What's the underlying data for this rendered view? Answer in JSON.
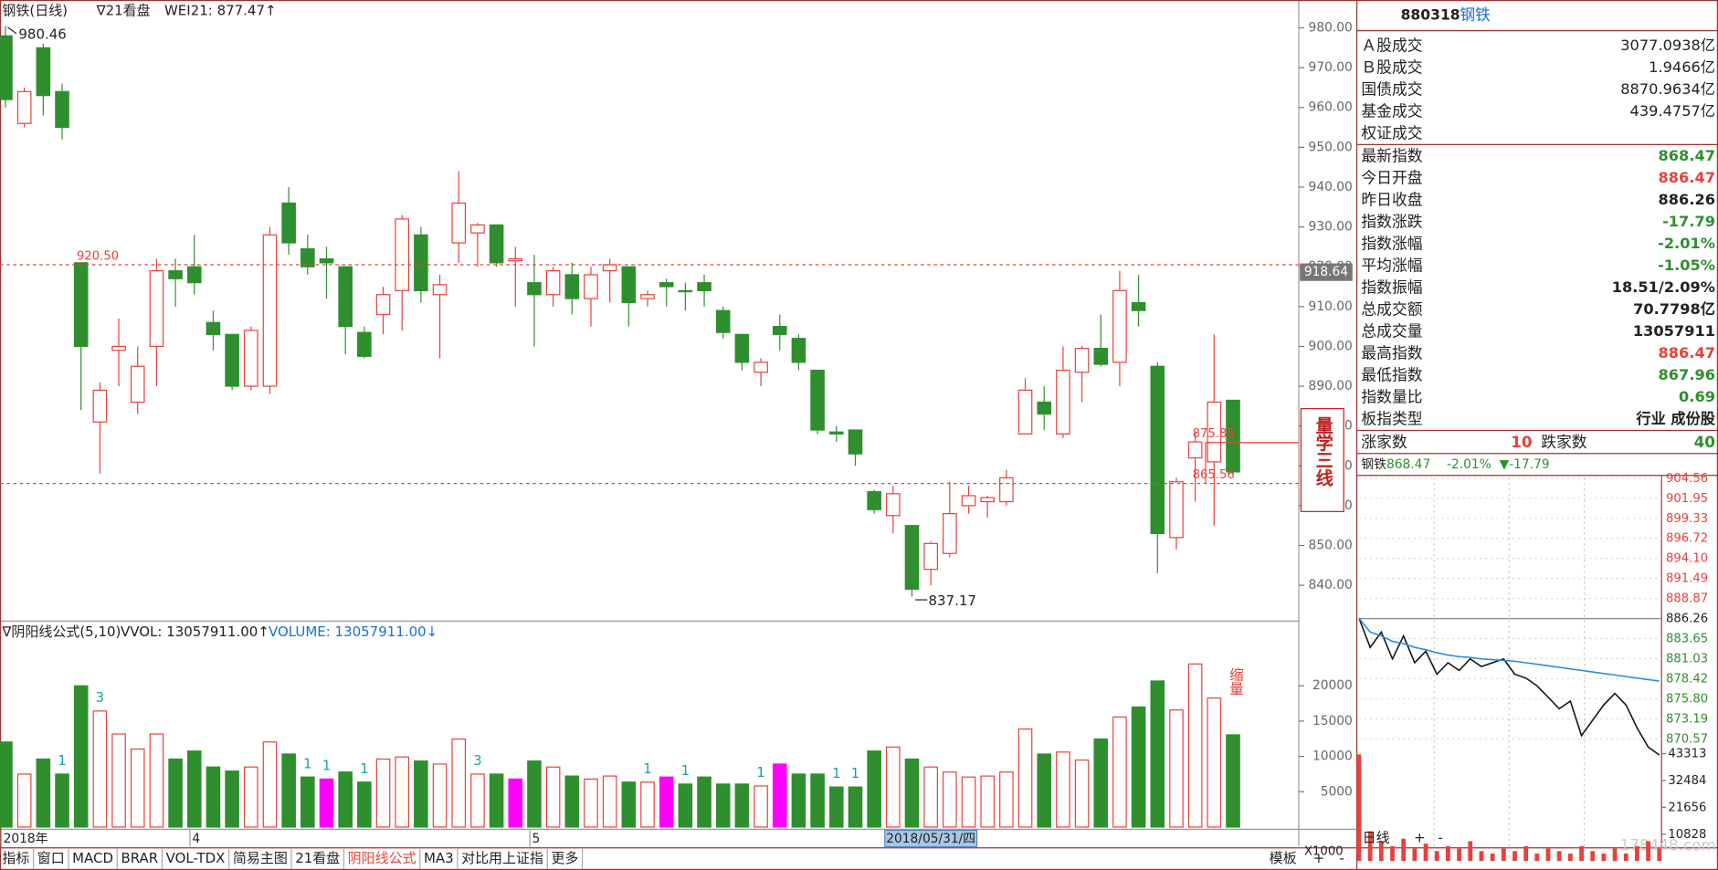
{
  "chart_data": [
    {
      "type": "candlestick",
      "title": "钢铁(日线)",
      "subtitle": "∇21看盘",
      "indicator": "WEI21: 877.47↑",
      "categories": [
        "2018年",
        null,
        null,
        null,
        null,
        null,
        null,
        null,
        null,
        null,
        "4",
        null,
        null,
        null,
        null,
        null,
        null,
        null,
        null,
        null,
        null,
        null,
        null,
        null,
        null,
        null,
        null,
        null,
        "5",
        null,
        null,
        null,
        null,
        null,
        null,
        null,
        null,
        null,
        null,
        null,
        null,
        null,
        null,
        null,
        null,
        null,
        null,
        null,
        null,
        "2018/05/31/四",
        null,
        null,
        null,
        null,
        null,
        null,
        null,
        null,
        null,
        null,
        null,
        null,
        null,
        null,
        null,
        null
      ],
      "open": [
        978,
        956,
        975,
        964,
        921,
        881,
        899,
        886,
        900,
        919,
        920,
        906,
        903,
        890,
        890,
        936,
        924.5,
        922,
        920,
        903.5,
        908,
        914,
        928,
        913,
        926,
        928.5,
        930.5,
        921.5,
        916,
        913,
        918,
        912,
        919,
        920,
        912,
        916,
        914,
        916,
        909,
        903,
        893.5,
        905,
        902,
        894,
        878.5,
        879,
        863.5,
        857.5,
        855,
        844,
        848,
        860,
        861,
        861,
        878,
        886,
        878,
        893.5,
        899.5,
        896,
        911,
        895,
        852,
        872,
        871,
        886.47
      ],
      "high": [
        980.46,
        965,
        976,
        966,
        921,
        891,
        907,
        900,
        922,
        922,
        928,
        909,
        903,
        905,
        930,
        940,
        928,
        925,
        920,
        905,
        915,
        933,
        930,
        918,
        944,
        931,
        930.5,
        925,
        923,
        920,
        921,
        920,
        922,
        920,
        914,
        917,
        916,
        918,
        910,
        903,
        897,
        908,
        903,
        894,
        880,
        879,
        864,
        865,
        855,
        851,
        866,
        865,
        862.5,
        869,
        892,
        890,
        900,
        900,
        908,
        919,
        918,
        896,
        867,
        878.5,
        903,
        886.47
      ],
      "low": [
        960,
        955,
        958,
        952,
        884,
        868,
        890,
        883,
        890,
        910,
        913,
        899,
        889,
        889,
        888,
        923,
        918,
        912,
        898,
        897,
        903,
        904,
        911,
        897,
        921,
        920,
        920,
        910,
        900,
        910,
        908,
        905,
        911,
        905,
        910,
        910,
        909,
        910,
        902,
        894,
        890,
        899,
        894,
        878,
        876,
        870,
        858,
        853,
        837.17,
        840,
        847,
        858,
        857,
        860,
        878,
        879,
        877,
        886,
        895,
        890,
        905,
        843,
        849,
        861,
        855,
        867.96
      ],
      "close": [
        962,
        964,
        963,
        955,
        900,
        889,
        900,
        895,
        919,
        917,
        916,
        903,
        890,
        904,
        928,
        926,
        920,
        921,
        905,
        897.5,
        913,
        932,
        914,
        915.5,
        936,
        930.5,
        921,
        922,
        913,
        919,
        912,
        918,
        920.5,
        911,
        913,
        915,
        914,
        914,
        903.5,
        896,
        896,
        903,
        896,
        879,
        878,
        873,
        859,
        863,
        839,
        850.5,
        858,
        862.5,
        862,
        867,
        889,
        883,
        894,
        899.5,
        895.5,
        914,
        909,
        853,
        866,
        876,
        886,
        868.47
      ],
      "up_color": "#e8403a",
      "down_color": "#2f8f2f",
      "ylim": [
        831,
        987
      ],
      "yticks": [
        {
          "value": 840,
          "label": "840.00"
        },
        {
          "value": 850,
          "label": "850.00"
        },
        {
          "value": 860,
          "label": "860.00"
        },
        {
          "value": 870,
          "label": "870.00"
        },
        {
          "value": 880,
          "label": "880.00"
        },
        {
          "value": 890,
          "label": "890.00"
        },
        {
          "value": 900,
          "label": "900.00"
        },
        {
          "value": 910,
          "label": "910.00"
        },
        {
          "value": 920,
          "label": "920.00"
        },
        {
          "value": 930,
          "label": "930.00"
        },
        {
          "value": 940,
          "label": "940.00"
        },
        {
          "value": 950,
          "label": "950.00"
        },
        {
          "value": 960,
          "label": "960.00"
        },
        {
          "value": 970,
          "label": "970.00"
        },
        {
          "value": 980,
          "label": "980.00"
        }
      ],
      "ref_lines": [
        {
          "value": 920.5,
          "label": "920.50",
          "style": "dashed"
        },
        {
          "value": 875.85,
          "label": "875.85",
          "style": "solid"
        },
        {
          "value": 865.56,
          "label": "865.56",
          "style": "dashed"
        }
      ],
      "side_label": "量学三线",
      "cursor": {
        "index": 49,
        "value": 918.64
      }
    },
    {
      "type": "bar",
      "title": "∇阴阳线公式(5,10)",
      "indicators": [
        "VVOL: 13057911.00↑",
        "VOLUME: 13057911.00↓"
      ],
      "values": [
        12040,
        7500,
        9630,
        7500,
        20000,
        16430,
        13170,
        11050,
        13170,
        9630,
        10760,
        8500,
        7930,
        8500,
        12040,
        10340,
        7080,
        6800,
        7790,
        6370,
        9630,
        9920,
        9350,
        8920,
        12460,
        7500,
        7500,
        6800,
        9350,
        8500,
        7220,
        6800,
        7220,
        6370,
        6370,
        7080,
        6090,
        7080,
        6090,
        6090,
        5810,
        8920,
        7500,
        7500,
        5670,
        5670,
        10760,
        11330,
        9630,
        8500,
        7790,
        7080,
        7220,
        7790,
        13880,
        10340,
        10620,
        9490,
        12460,
        15580,
        17000,
        20680,
        16570,
        23090,
        18270,
        13057.911
      ],
      "signals": [
        null,
        null,
        null,
        "1",
        null,
        "3",
        null,
        null,
        null,
        null,
        null,
        null,
        null,
        null,
        null,
        null,
        "1",
        "1",
        null,
        "1",
        null,
        null,
        null,
        null,
        null,
        "3",
        null,
        null,
        null,
        null,
        null,
        null,
        null,
        null,
        "1",
        null,
        "1",
        null,
        null,
        null,
        "1",
        null,
        null,
        null,
        "1",
        "1",
        null,
        null,
        null,
        null,
        null,
        null,
        null,
        null,
        null,
        null,
        null,
        null,
        null,
        null,
        null,
        null,
        null,
        null,
        null,
        null
      ],
      "highlight": [
        17,
        27,
        35,
        41
      ],
      "highlight_color": "#ff00ff",
      "signal_color": "#1aa0a8",
      "note": "缩量",
      "unit_label": "X1000",
      "ylim": [
        0,
        25900
      ],
      "yticks": [
        5000,
        10000,
        15000,
        20000
      ]
    },
    {
      "type": "line",
      "name": "钢铁",
      "quote": [
        "868.47",
        "-2.01%",
        "▼-17.79"
      ],
      "grid": true,
      "series": [
        {
          "color": "#111111",
          "values": [
            886.3,
            882.5,
            884.5,
            881,
            884,
            880.5,
            882,
            879,
            880.5,
            879.5,
            881,
            880,
            880.5,
            881,
            879,
            878.5,
            877.5,
            876,
            874.5,
            875.5,
            871,
            873,
            875,
            876.5,
            875,
            872,
            869.5,
            868.47
          ]
        },
        {
          "color": "#2a8ad8",
          "values": [
            886.3,
            884.5,
            884,
            883.3,
            883,
            882.5,
            882.2,
            881.8,
            881.5,
            881.3,
            881.2,
            881,
            880.9,
            880.8,
            880.7,
            880.5,
            880.3,
            880.1,
            879.9,
            879.7,
            879.5,
            879.3,
            879.1,
            878.9,
            878.7,
            878.5,
            878.3,
            878.1
          ]
        }
      ],
      "ylim": [
        865.5,
        905.5
      ],
      "yticks": [
        904.56,
        901.95,
        899.33,
        896.72,
        {
          "value": 894.1,
          "label": "894.10"
        },
        891.49,
        888.87,
        886.26,
        883.65,
        881.03,
        878.42,
        {
          "value": 875.8,
          "label": "875.80"
        },
        873.19,
        870.57
      ],
      "volume": {
        "color": "#e8403a",
        "values": [
          43000,
          12000,
          8000,
          6000,
          9000,
          5000,
          7000,
          4000,
          6000,
          5000,
          8000,
          4000,
          3000,
          5000,
          4000,
          6000,
          3000,
          5000,
          4000,
          3000,
          6000,
          4000,
          3000,
          5000,
          3000,
          6000,
          8000,
          5000
        ],
        "ylim": [
          0,
          43313
        ],
        "yticks": [
          10828,
          21656,
          32484,
          43313
        ]
      }
    }
  ],
  "panel": {
    "code": "880318",
    "name": "钢铁",
    "turnover": [
      {
        "label": "Ａ股成交",
        "value": "3077.0938亿"
      },
      {
        "label": "Ｂ股成交",
        "value": "1.9466亿"
      },
      {
        "label": "国债成交",
        "value": "8870.9634亿"
      },
      {
        "label": "基金成交",
        "value": "439.4757亿"
      },
      {
        "label": "权证成交"
      }
    ],
    "stats": [
      {
        "label": "最新指数",
        "value": "868.47",
        "color": "#2f8f2f"
      },
      {
        "label": "今日开盘",
        "value": "886.47",
        "color": "#e8403a"
      },
      {
        "label": "昨日收盘",
        "value": "886.26",
        "color": "#222222"
      },
      {
        "label": "指数涨跌",
        "value": "-17.79",
        "color": "#2f8f2f"
      },
      {
        "label": "指数涨幅",
        "value": "-2.01%",
        "color": "#2f8f2f"
      },
      {
        "label": "平均涨幅",
        "value": "-1.05%",
        "color": "#2f8f2f"
      },
      {
        "label": "指数振幅",
        "value": "18.51/2.09%",
        "color": "#222222"
      },
      {
        "label": "总成交额",
        "value": "70.7798亿",
        "color": "#222222"
      },
      {
        "label": "总成交量",
        "value": "13057911",
        "color": "#222222"
      },
      {
        "label": "最高指数",
        "value": "886.47",
        "color": "#e8403a"
      },
      {
        "label": "最低指数",
        "value": "867.96",
        "color": "#2f8f2f"
      },
      {
        "label": "指数量比",
        "value": "0.69",
        "color": "#2f8f2f"
      },
      {
        "label": "板指类型",
        "value": "行业 成份股",
        "color": "#222222"
      }
    ],
    "breadth": {
      "up_label": "涨家数",
      "up": 10,
      "down_label": "跌家数",
      "down": 40
    }
  },
  "toolbar": {
    "tabs": [
      "指标",
      "窗口",
      "MACD",
      "BRAR",
      "VOL-TDX",
      "简易主图",
      "21看盘",
      "阴阳线公式",
      "MA3",
      "对比用上证指",
      "更多"
    ],
    "active": 7,
    "right": [
      "模板",
      "+",
      "-"
    ],
    "side": [
      "日线",
      "+",
      "-"
    ]
  },
  "watermark": "178448.com"
}
